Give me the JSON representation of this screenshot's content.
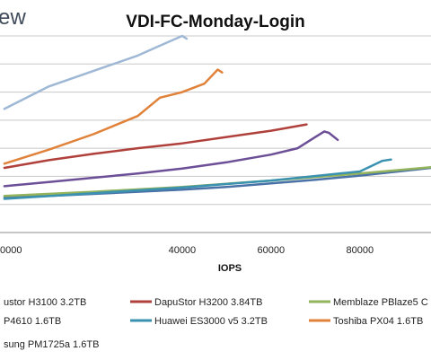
{
  "brand": "ew",
  "chart_data": {
    "type": "line",
    "title": "VDI-FC-Monday-Login",
    "xlabel": "IOPS",
    "ylabel": "",
    "xlim": [
      -1000,
      96000
    ],
    "ylim": [
      0,
      14
    ],
    "x_ticks": [
      0,
      40000,
      60000,
      80000
    ],
    "x_tick_labels": [
      "0000",
      "40000",
      "60000",
      "80000"
    ],
    "grid": true,
    "legend_position": "bottom",
    "series": [
      {
        "name": "ustor H3100 3.2TB",
        "color": "#4a72a6",
        "x": [
          0,
          10000,
          20000,
          30000,
          40000,
          50000,
          60000,
          70000,
          80000,
          90000,
          96000
        ],
        "y": [
          2.5,
          2.6,
          2.75,
          2.9,
          3.05,
          3.25,
          3.5,
          3.75,
          4.05,
          4.4,
          4.6
        ]
      },
      {
        "name": "DapuStor H3200 3.84TB",
        "color": "#b0403b",
        "x": [
          0,
          10000,
          20000,
          30000,
          40000,
          50000,
          60000,
          68000
        ],
        "y": [
          4.6,
          5.15,
          5.6,
          6.0,
          6.35,
          6.8,
          7.25,
          7.7
        ]
      },
      {
        "name": "Memblaze PBlaze5 C",
        "color": "#93b35c",
        "x": [
          0,
          20000,
          40000,
          60000,
          80000,
          96000
        ],
        "y": [
          2.6,
          2.9,
          3.25,
          3.7,
          4.2,
          4.65
        ]
      },
      {
        "name": "P4610 1.6TB",
        "color": "#6c4f97",
        "x": [
          0,
          10000,
          20000,
          30000,
          40000,
          50000,
          60000,
          66000,
          70000,
          72000,
          73000,
          75000
        ],
        "y": [
          3.3,
          3.6,
          3.9,
          4.2,
          4.55,
          5.0,
          5.55,
          6.0,
          6.8,
          7.2,
          7.1,
          6.6
        ]
      },
      {
        "name": "Huawei ES3000 v5 3.2TB",
        "color": "#3b92b0",
        "x": [
          0,
          20000,
          40000,
          60000,
          80000,
          85000,
          87000
        ],
        "y": [
          2.4,
          2.8,
          3.2,
          3.7,
          4.35,
          5.1,
          5.2
        ]
      },
      {
        "name": "Toshiba PX04 1.6TB",
        "color": "#e0823a",
        "x": [
          0,
          10000,
          20000,
          30000,
          35000,
          40000,
          45000,
          48000,
          49000
        ],
        "y": [
          4.9,
          5.9,
          7.0,
          8.3,
          9.6,
          10.0,
          10.6,
          11.6,
          11.4
        ]
      },
      {
        "name": "sung PM1725a 1.6TB",
        "color": "#9fb8d6",
        "x": [
          0,
          10000,
          20000,
          30000,
          35000,
          40000,
          41000
        ],
        "y": [
          8.8,
          10.4,
          11.5,
          12.6,
          13.3,
          14.0,
          13.8
        ]
      }
    ]
  }
}
